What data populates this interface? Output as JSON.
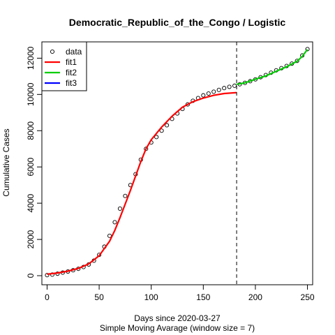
{
  "chart_data": {
    "type": "line",
    "title": "Democratic_Republic_of_the_Congo / Logistic",
    "xlabel": "Days since 2020-03-27",
    "subtitle": "Simple Moving Avarage (window size = 7)",
    "ylabel": "Cumulative Cases",
    "xlim": [
      -5,
      255
    ],
    "ylim": [
      -500,
      12900
    ],
    "x_ticks": [
      0,
      50,
      100,
      150,
      200,
      250
    ],
    "y_ticks": [
      0,
      2000,
      4000,
      6000,
      8000,
      10000,
      12000
    ],
    "grid": false,
    "legend_position": "top-left",
    "cutoff_x": 182,
    "colors": {
      "data": "#000000",
      "fit1": "#ff0000",
      "fit2": "#00cd00",
      "fit3": "#0000ff",
      "cutoff": "#000000"
    },
    "series": [
      {
        "name": "data",
        "style": "points",
        "x": [
          0,
          5,
          10,
          15,
          20,
          25,
          30,
          35,
          40,
          45,
          50,
          55,
          60,
          65,
          70,
          75,
          80,
          85,
          90,
          95,
          100,
          105,
          110,
          115,
          120,
          125,
          130,
          135,
          140,
          145,
          150,
          155,
          160,
          165,
          170,
          175,
          180,
          185,
          190,
          195,
          200,
          205,
          210,
          215,
          220,
          225,
          230,
          235,
          240,
          245,
          250
        ],
        "y": [
          30,
          60,
          110,
          170,
          230,
          300,
          380,
          480,
          620,
          830,
          1150,
          1600,
          2200,
          2950,
          3700,
          4400,
          5000,
          5600,
          6400,
          7000,
          7350,
          7650,
          8000,
          8300,
          8650,
          8950,
          9200,
          9450,
          9650,
          9800,
          9950,
          10050,
          10150,
          10250,
          10350,
          10420,
          10480,
          10560,
          10640,
          10730,
          10830,
          10950,
          11070,
          11200,
          11330,
          11450,
          11570,
          11700,
          11850,
          12150,
          12500
        ]
      },
      {
        "name": "fit1",
        "style": "line",
        "x": [
          0,
          10,
          20,
          30,
          40,
          50,
          60,
          65,
          70,
          75,
          80,
          85,
          90,
          95,
          100,
          110,
          120,
          130,
          140,
          150,
          160,
          170,
          182
        ],
        "y": [
          80,
          150,
          250,
          400,
          650,
          1100,
          1900,
          2500,
          3200,
          3950,
          4700,
          5500,
          6300,
          7000,
          7500,
          8200,
          8800,
          9300,
          9600,
          9800,
          9950,
          10050,
          10100
        ]
      },
      {
        "name": "fit2",
        "style": "line",
        "x": [
          182,
          190,
          200,
          210,
          220,
          230,
          240,
          245,
          250
        ],
        "y": [
          10560,
          10640,
          10840,
          11020,
          11280,
          11530,
          11830,
          12100,
          12480
        ]
      },
      {
        "name": "fit3",
        "style": "line",
        "x": [],
        "y": []
      }
    ]
  }
}
